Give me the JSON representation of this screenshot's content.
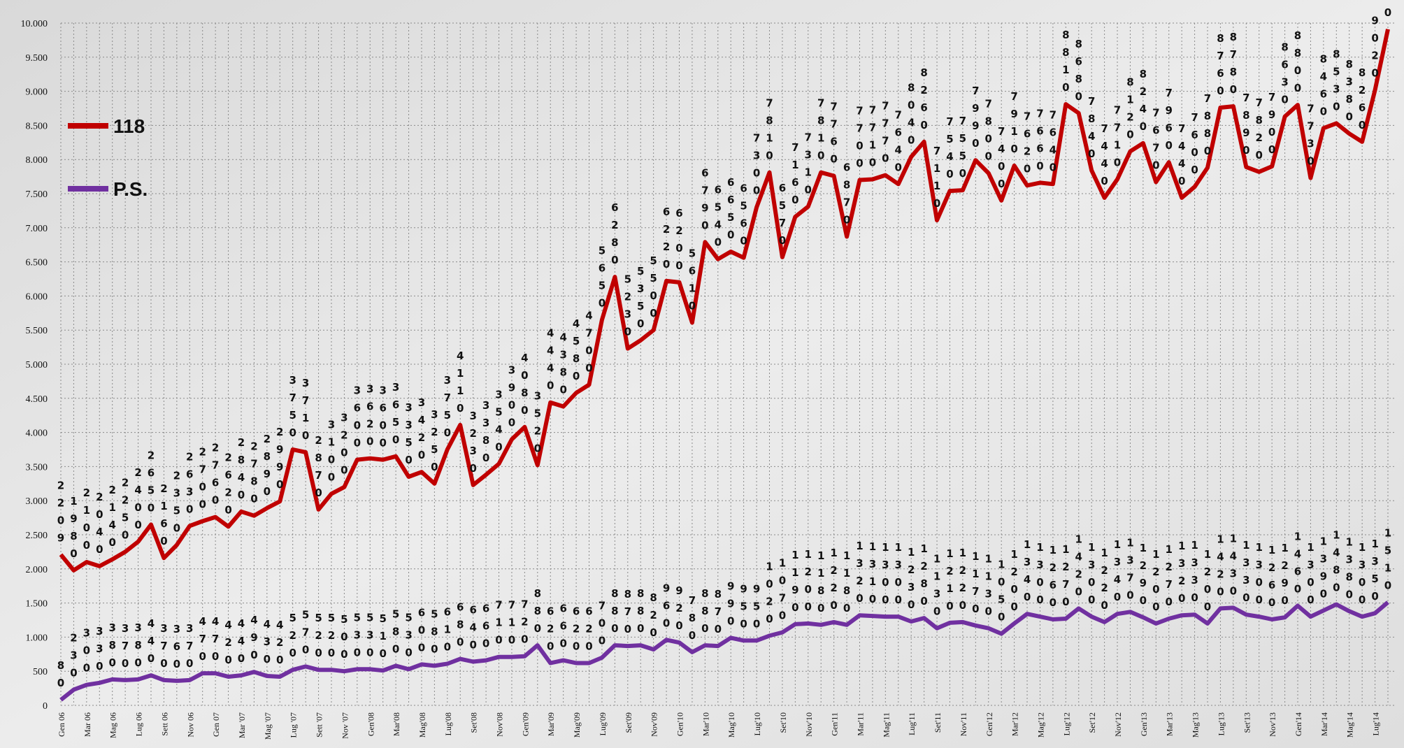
{
  "chart_data": {
    "type": "line",
    "categories": [
      "Gen 06",
      null,
      "Mar 06",
      null,
      "Mag 06",
      null,
      "Lug 06",
      null,
      "Sett 06",
      null,
      "Nov 06",
      null,
      "Gen 07",
      null,
      "Mar '07",
      null,
      "Mag '07",
      null,
      "Lug '07",
      null,
      "Sett '07",
      null,
      "Nov '07",
      null,
      "Gen'08",
      null,
      "Mar'08",
      null,
      "Mag'08",
      null,
      "Lug'08",
      null,
      "Set'08",
      null,
      "Nov'08",
      null,
      "Gen'09",
      null,
      "Mar'09",
      null,
      "Mag'09",
      null,
      "Lug'09",
      null,
      "Set'09",
      null,
      "Nov'09",
      null,
      "Gen'10",
      null,
      "Mar'10",
      null,
      "Mag'10",
      null,
      "Lug'10",
      null,
      "Set'10",
      null,
      "Nov'10",
      null,
      "Gen'11",
      null,
      "Mar'11",
      null,
      "Mag'11",
      null,
      "Lug'11",
      null,
      "Set'11",
      null,
      "Nov'11",
      null,
      "Gen'12",
      null,
      "Mar'12",
      null,
      "Mag'12",
      null,
      "Lug'12",
      null,
      "Set'12",
      null,
      "Nov'12",
      null,
      "Gen'13",
      null,
      "Mar'13",
      null,
      "Mag'13",
      null,
      "Lug'13",
      null,
      "Set'13",
      null,
      "Nov'13",
      null,
      "Gen'14",
      null,
      "Mar'14",
      null,
      "Mag'14",
      null,
      "Lug'14",
      null
    ],
    "series": [
      {
        "name": "118",
        "color": "#c00000",
        "values": [
          2209,
          1980,
          2100,
          2040,
          2140,
          2250,
          2400,
          2650,
          2160,
          2350,
          2630,
          2700,
          2760,
          2620,
          2840,
          2780,
          2890,
          2990,
          3750,
          3710,
          2870,
          3100,
          3200,
          3600,
          3620,
          3600,
          3650,
          3350,
          3420,
          3250,
          3750,
          4110,
          3230,
          3380,
          3540,
          3900,
          4080,
          3520,
          4440,
          4380,
          4580,
          4700,
          5650,
          6280,
          5230,
          5350,
          5500,
          6220,
          6200,
          5610,
          6790,
          6540,
          6650,
          6560,
          7300,
          7810,
          6570,
          7160,
          7310,
          7810,
          7760,
          6870,
          7700,
          7710,
          7770,
          7640,
          8040,
          8260,
          7110,
          7540,
          7550,
          7990,
          7800,
          7400,
          7910,
          7620,
          7660,
          7640,
          8810,
          8680,
          7840,
          7440,
          7710,
          8120,
          8240,
          7670,
          7960,
          7440,
          7600,
          7880,
          8760,
          8780,
          7890,
          7820,
          7900,
          8630,
          8800,
          7730,
          8460,
          8530,
          8380,
          8260,
          9020,
          9910
        ]
      },
      {
        "name": "P.S.",
        "color": "#7030a0",
        "values": [
          80,
          230,
          300,
          330,
          380,
          370,
          380,
          440,
          370,
          360,
          370,
          470,
          470,
          420,
          440,
          490,
          430,
          420,
          520,
          570,
          520,
          520,
          500,
          530,
          530,
          510,
          580,
          530,
          600,
          580,
          610,
          680,
          640,
          660,
          710,
          710,
          720,
          880,
          620,
          660,
          620,
          620,
          700,
          880,
          870,
          880,
          820,
          960,
          920,
          780,
          880,
          870,
          990,
          950,
          950,
          1020,
          1070,
          1190,
          1200,
          1180,
          1220,
          1180,
          1320,
          1310,
          1300,
          1300,
          1230,
          1280,
          1130,
          1210,
          1220,
          1170,
          1130,
          1050,
          1200,
          1340,
          1300,
          1260,
          1270,
          1420,
          1300,
          1220,
          1340,
          1370,
          1290,
          1200,
          1270,
          1320,
          1330,
          1200,
          1420,
          1430,
          1330,
          1300,
          1260,
          1290,
          1460,
          1300,
          1390,
          1480,
          1380,
          1300,
          1350,
          1510
        ]
      }
    ],
    "ylim": [
      0,
      10000
    ],
    "yticks": [
      0,
      500,
      {
        "value": 1000,
        "label": "1.000"
      },
      {
        "value": 1500,
        "label": "1.500"
      },
      {
        "value": 2000,
        "label": "2.000"
      },
      {
        "value": 2500,
        "label": "2.500"
      },
      {
        "value": 3000,
        "label": "3.000"
      },
      {
        "value": 3500,
        "label": "3.500"
      },
      {
        "value": 4000,
        "label": "4.000"
      },
      {
        "value": 4500,
        "label": "4.500"
      },
      {
        "value": 5000,
        "label": "5.000"
      },
      {
        "value": 5500,
        "label": "5.500"
      },
      {
        "value": 6000,
        "label": "6.000"
      },
      {
        "value": 6500,
        "label": "6.500"
      },
      {
        "value": 7000,
        "label": "7.000"
      },
      {
        "value": 7500,
        "label": "7.500"
      },
      {
        "value": 8000,
        "label": "8.000"
      },
      {
        "value": 8500,
        "label": "8.500"
      },
      {
        "value": 9000,
        "label": "9.000"
      },
      {
        "value": 9500,
        "label": "9.500"
      },
      {
        "value": 10000,
        "label": "10.000"
      }
    ],
    "grid": true,
    "legend": "top-left"
  }
}
